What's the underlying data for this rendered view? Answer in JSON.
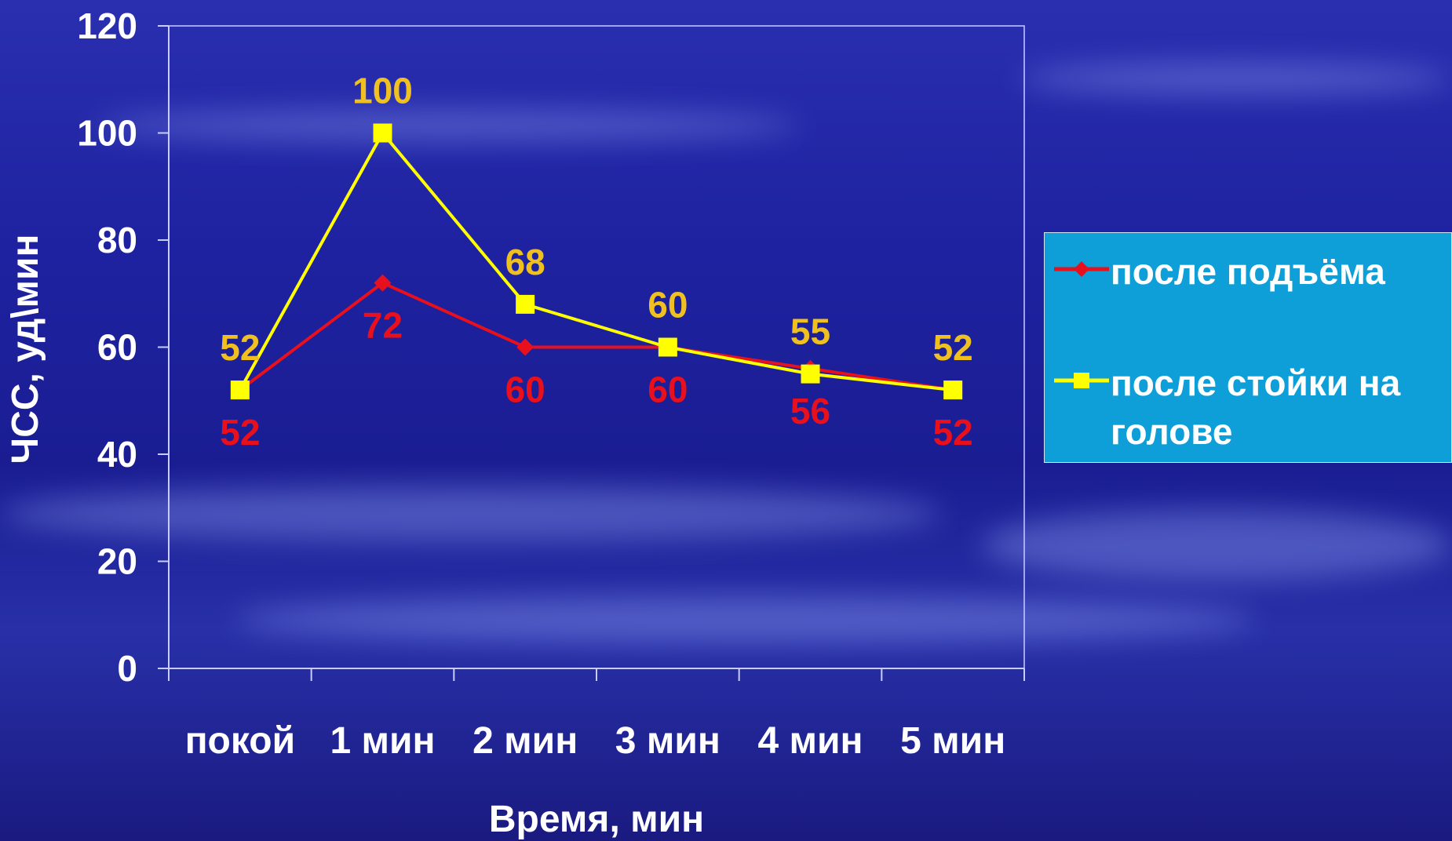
{
  "chart_data": {
    "type": "line",
    "categories": [
      "покой",
      "1 мин",
      "2 мин",
      "3 мин",
      "4 мин",
      "5 мин"
    ],
    "series": [
      {
        "name": "после подъёма",
        "values": [
          52,
          72,
          60,
          60,
          56,
          52
        ],
        "color": "#e8101c",
        "marker": "diamond"
      },
      {
        "name": "после стойки на голове",
        "values": [
          52,
          100,
          68,
          60,
          55,
          52
        ],
        "color": "#ffff00",
        "marker": "square",
        "label_color": "#f0c020"
      }
    ],
    "xlabel": "Время, мин",
    "ylabel": "ЧСС, уд\\мин",
    "ylim": [
      0,
      120
    ],
    "yticks": [
      "0",
      "20",
      "40",
      "60",
      "80",
      "100",
      "120"
    ],
    "grid": false,
    "legend": "right"
  }
}
